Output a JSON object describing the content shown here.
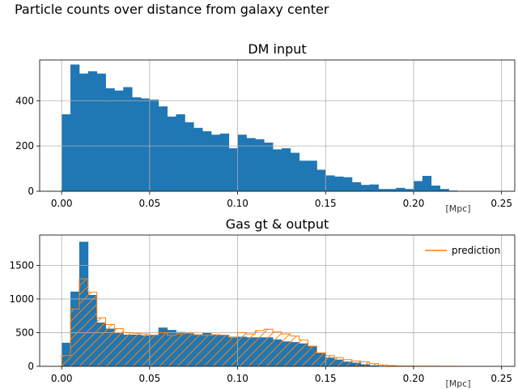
{
  "figure_title": "Particle counts over distance from galaxy center",
  "colors": {
    "blue": "#1f77b4",
    "orange": "#ff7f0e",
    "grid": "#b0b0b0"
  },
  "chart_data": [
    {
      "type": "bar",
      "title": "DM input",
      "xlabel": "[Mpc]",
      "ylabel": "",
      "xlim": [
        -0.0125,
        0.2575
      ],
      "ylim": [
        0,
        580
      ],
      "grid": true,
      "bin_width": 0.005,
      "bin_start": 0.0,
      "xticks": [
        0.0,
        0.05,
        0.1,
        0.15,
        0.2,
        0.25
      ],
      "xtick_labels": [
        "0.00",
        "0.05",
        "0.10",
        "0.15",
        "0.20",
        "0.25"
      ],
      "yticks": [
        0,
        200,
        400
      ],
      "series": [
        {
          "name": "DM input",
          "style": "filled",
          "color": "#1f77b4",
          "values": [
            340,
            560,
            520,
            530,
            520,
            455,
            445,
            460,
            415,
            410,
            405,
            375,
            330,
            340,
            305,
            280,
            265,
            250,
            255,
            190,
            250,
            235,
            230,
            215,
            185,
            190,
            170,
            135,
            135,
            95,
            70,
            65,
            62,
            40,
            28,
            30,
            10,
            10,
            15,
            10,
            45,
            68,
            25,
            10,
            3
          ]
        }
      ]
    },
    {
      "type": "bar",
      "title": "Gas gt & output",
      "xlabel": "[Mpc]",
      "ylabel": "",
      "xlim": [
        -0.0125,
        0.2575
      ],
      "ylim": [
        0,
        1950
      ],
      "grid": true,
      "bin_width": 0.005,
      "bin_start": 0.0,
      "xticks": [
        0.0,
        0.05,
        0.1,
        0.15,
        0.2,
        0.25
      ],
      "xtick_labels": [
        "0.00",
        "0.05",
        "0.10",
        "0.15",
        "0.20",
        "0.25"
      ],
      "yticks": [
        0,
        500,
        1000,
        1500
      ],
      "legend_position": "top-right",
      "series": [
        {
          "name": "gt",
          "style": "filled-hatched",
          "color": "#1f77b4",
          "values": [
            350,
            1110,
            1850,
            1060,
            650,
            560,
            500,
            470,
            470,
            460,
            470,
            575,
            540,
            510,
            500,
            470,
            495,
            470,
            470,
            440,
            440,
            430,
            430,
            430,
            400,
            370,
            360,
            340,
            300,
            200,
            130,
            100,
            70,
            55,
            30,
            15,
            5,
            5,
            5,
            3,
            3,
            2,
            1,
            1,
            0
          ]
        },
        {
          "name": "prediction",
          "style": "step",
          "color": "#ff7f0e",
          "values": [
            160,
            850,
            1300,
            1100,
            720,
            620,
            560,
            500,
            490,
            480,
            460,
            500,
            460,
            480,
            490,
            470,
            460,
            470,
            460,
            430,
            500,
            480,
            530,
            550,
            510,
            480,
            450,
            390,
            300,
            200,
            160,
            130,
            100,
            80,
            65,
            40,
            20,
            10,
            5,
            3,
            2,
            1,
            1,
            0,
            0
          ]
        }
      ]
    }
  ]
}
